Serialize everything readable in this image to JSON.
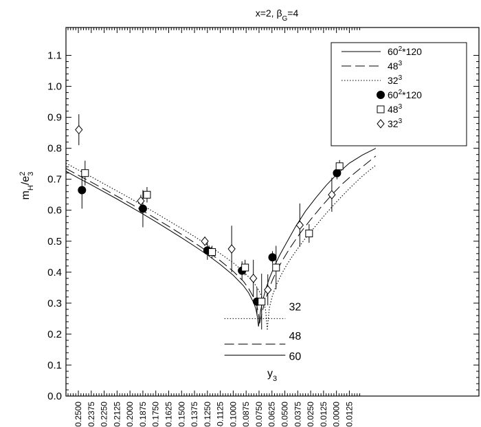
{
  "chart_data": {
    "type": "scatter",
    "title_main": "x=2, β",
    "title_sub": "G",
    "title_rest": "=4",
    "ylabel": {
      "base": "m",
      "sub1": "H",
      "mid": "/e",
      "sub2": "3",
      "sup": "2"
    },
    "xlabel": {
      "base": "y",
      "sub": "3"
    },
    "xlim": [
      -0.262,
      0.138
    ],
    "ylim": [
      0.0,
      1.19
    ],
    "yticks": [
      0.0,
      0.1,
      0.2,
      0.3,
      0.4,
      0.5,
      0.6,
      0.7,
      0.8,
      0.9,
      1.0,
      1.1
    ],
    "ytick_labels": [
      "0.0",
      "0.1",
      "0.2",
      "0.3",
      "0.4",
      "0.5",
      "0.6",
      "0.7",
      "0.8",
      "0.9",
      "1.0",
      "1.1"
    ],
    "xticks": [
      -0.25,
      -0.2375,
      -0.225,
      -0.2125,
      -0.2,
      -0.1875,
      -0.175,
      -0.1625,
      -0.15,
      -0.1375,
      -0.125,
      -0.1125,
      -0.1,
      -0.0875,
      -0.075,
      -0.0625,
      -0.05,
      -0.0375,
      -0.025,
      -0.0125,
      0.0,
      0.0125
    ],
    "xtick_labels": [
      "-0.2500",
      "-0.2375",
      "-0.2250",
      "-0.2125",
      "-0.2000",
      "-0.1875",
      "-0.1750",
      "-0.1625",
      "-0.1500",
      "-0.1375",
      "-0.1250",
      "-0.1125",
      "-0.1000",
      "-0.0875",
      "-0.0750",
      "-0.0625",
      "-0.0500",
      "-0.0375",
      "-0.0250",
      "-0.0125",
      "0.0000",
      "0.0125"
    ],
    "legend": {
      "position": "top-right",
      "entries": [
        {
          "kind": "line",
          "style": "solid",
          "base": "60",
          "sup": "2",
          "rest": "*120"
        },
        {
          "kind": "line",
          "style": "dashed",
          "base": "48",
          "sup": "3",
          "rest": ""
        },
        {
          "kind": "line",
          "style": "dotted",
          "base": "32",
          "sup": "3",
          "rest": ""
        },
        {
          "kind": "marker",
          "marker": "filled-circle",
          "base": "60",
          "sup": "2",
          "rest": "*120"
        },
        {
          "kind": "marker",
          "marker": "open-square",
          "base": "48",
          "sup": "3",
          "rest": ""
        },
        {
          "kind": "marker",
          "marker": "open-diamond",
          "base": "32",
          "sup": "3",
          "rest": ""
        }
      ]
    },
    "series_points": [
      {
        "name": "60^2*120",
        "marker": "filled-circle",
        "points": [
          {
            "x": -0.2465,
            "y": 0.665,
            "err": 0.06
          },
          {
            "x": -0.1875,
            "y": 0.605,
            "err": 0.06
          },
          {
            "x": -0.125,
            "y": 0.47,
            "err": 0.03
          },
          {
            "x": -0.0915,
            "y": 0.405,
            "err": 0.03
          },
          {
            "x": -0.077,
            "y": 0.305,
            "err": 0.045
          },
          {
            "x": -0.062,
            "y": 0.448,
            "err": 0.02
          },
          {
            "x": 0.0005,
            "y": 0.72,
            "err": 0.02
          }
        ]
      },
      {
        "name": "48^3",
        "marker": "open-square",
        "points": [
          {
            "x": -0.2435,
            "y": 0.72,
            "err": 0.04
          },
          {
            "x": -0.1835,
            "y": 0.65,
            "err": 0.025
          },
          {
            "x": -0.1205,
            "y": 0.465,
            "err": 0.02
          },
          {
            "x": -0.0885,
            "y": 0.415,
            "err": 0.025
          },
          {
            "x": -0.0725,
            "y": 0.305,
            "err": 0.09
          },
          {
            "x": -0.0585,
            "y": 0.415,
            "err": 0.07
          },
          {
            "x": -0.0265,
            "y": 0.525,
            "err": 0.03
          },
          {
            "x": 0.003,
            "y": 0.742,
            "err": 0.02
          }
        ]
      },
      {
        "name": "32^3",
        "marker": "open-diamond",
        "points": [
          {
            "x": -0.2495,
            "y": 0.86,
            "err": 0.05
          },
          {
            "x": -0.1895,
            "y": 0.63,
            "err": 0.02
          },
          {
            "x": -0.1275,
            "y": 0.5,
            "err": 0.015
          },
          {
            "x": -0.1015,
            "y": 0.475,
            "err": 0.075
          },
          {
            "x": -0.0805,
            "y": 0.38,
            "err": 0.06
          },
          {
            "x": -0.0665,
            "y": 0.343,
            "err": 0.05
          },
          {
            "x": -0.0355,
            "y": 0.552,
            "err": 0.07
          },
          {
            "x": -0.0045,
            "y": 0.65,
            "err": 0.055
          }
        ]
      }
    ],
    "curves": [
      {
        "name": "60^2*120",
        "style": "solid",
        "x": [
          -0.262,
          -0.25,
          -0.2375,
          -0.225,
          -0.2125,
          -0.2,
          -0.1875,
          -0.175,
          -0.1625,
          -0.15,
          -0.1375,
          -0.125,
          -0.1125,
          -0.1,
          -0.09,
          -0.085,
          -0.08,
          -0.078,
          -0.0765,
          -0.0755
        ],
        "y": [
          0.726,
          0.704,
          0.682,
          0.659,
          0.636,
          0.612,
          0.588,
          0.563,
          0.537,
          0.511,
          0.484,
          0.456,
          0.425,
          0.39,
          0.356,
          0.333,
          0.3,
          0.28,
          0.255,
          0.225
        ]
      },
      {
        "name": "60^2*120",
        "style": "solid",
        "x": [
          -0.0755,
          -0.0735,
          -0.071,
          -0.068,
          -0.065,
          -0.06,
          -0.055,
          -0.05,
          -0.04,
          -0.03,
          -0.02,
          -0.01,
          0.0,
          0.0125,
          0.025,
          0.038
        ],
        "y": [
          0.225,
          0.275,
          0.315,
          0.35,
          0.38,
          0.42,
          0.455,
          0.485,
          0.545,
          0.597,
          0.64,
          0.68,
          0.715,
          0.752,
          0.778,
          0.8
        ]
      },
      {
        "name": "48^3",
        "style": "dashed",
        "x": [
          -0.262,
          -0.25,
          -0.2375,
          -0.225,
          -0.2125,
          -0.2,
          -0.1875,
          -0.175,
          -0.1625,
          -0.15,
          -0.1375,
          -0.125,
          -0.1125,
          -0.1,
          -0.09,
          -0.085,
          -0.08,
          -0.077,
          -0.0755,
          -0.0745
        ],
        "y": [
          0.735,
          0.713,
          0.691,
          0.668,
          0.645,
          0.622,
          0.598,
          0.573,
          0.548,
          0.522,
          0.495,
          0.467,
          0.437,
          0.403,
          0.37,
          0.347,
          0.317,
          0.29,
          0.265,
          0.235
        ]
      },
      {
        "name": "48^3",
        "style": "dashed",
        "x": [
          -0.0745,
          -0.072,
          -0.069,
          -0.066,
          -0.062,
          -0.057,
          -0.052,
          -0.045,
          -0.035,
          -0.025,
          -0.015,
          -0.005,
          0.005,
          0.015,
          0.025,
          0.038
        ],
        "y": [
          0.235,
          0.27,
          0.31,
          0.34,
          0.375,
          0.41,
          0.44,
          0.478,
          0.527,
          0.57,
          0.61,
          0.648,
          0.683,
          0.713,
          0.74,
          0.775
        ]
      },
      {
        "name": "32^3",
        "style": "dotted",
        "x": [
          -0.262,
          -0.25,
          -0.2375,
          -0.225,
          -0.2125,
          -0.2,
          -0.1875,
          -0.175,
          -0.1625,
          -0.15,
          -0.1375,
          -0.125,
          -0.1125,
          -0.1,
          -0.09,
          -0.08,
          -0.075,
          -0.0705,
          -0.0685,
          -0.067
        ],
        "y": [
          0.752,
          0.73,
          0.708,
          0.685,
          0.662,
          0.639,
          0.615,
          0.591,
          0.566,
          0.541,
          0.515,
          0.488,
          0.46,
          0.43,
          0.402,
          0.366,
          0.34,
          0.305,
          0.275,
          0.215
        ]
      },
      {
        "name": "32^3",
        "style": "dotted",
        "x": [
          -0.067,
          -0.065,
          -0.062,
          -0.058,
          -0.053,
          -0.047,
          -0.04,
          -0.03,
          -0.02,
          -0.01,
          0.0,
          0.0125,
          0.025,
          0.038
        ],
        "y": [
          0.215,
          0.285,
          0.325,
          0.36,
          0.395,
          0.43,
          0.465,
          0.51,
          0.55,
          0.59,
          0.627,
          0.67,
          0.71,
          0.745
        ]
      }
    ],
    "reference_lines": [
      {
        "label": "32",
        "style": "dotted",
        "y": 0.25,
        "x0": -0.1085,
        "x1": -0.0495
      },
      {
        "label": "48",
        "style": "dashed",
        "y": 0.168,
        "x0": -0.1085,
        "x1": -0.0495
      },
      {
        "label": "60",
        "style": "solid",
        "y": 0.132,
        "x0": -0.1085,
        "x1": -0.0495
      }
    ],
    "reference_labels": [
      {
        "text": "32",
        "x": -0.046,
        "y": 0.29
      },
      {
        "text": "48",
        "x": -0.046,
        "y": 0.195
      },
      {
        "text": "60",
        "x": -0.046,
        "y": 0.13
      }
    ]
  }
}
